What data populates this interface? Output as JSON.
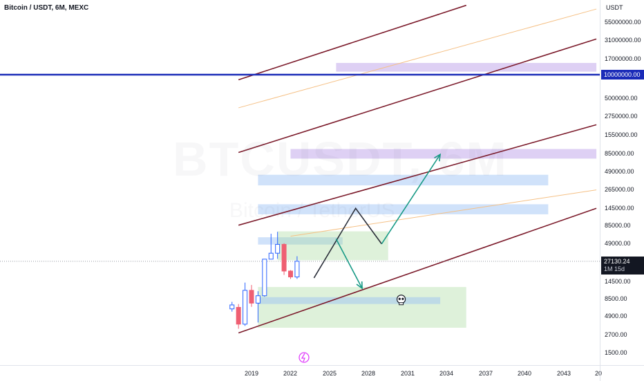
{
  "legend": {
    "symbol_title": "Bitcoin / USDT, 6M, MEXC"
  },
  "watermark": {
    "main": "BTCUSDT, 6M",
    "sub": "Bitcoin / TetherUS"
  },
  "colors": {
    "up_candle": "#2962ff",
    "down_candle": "#ef5f72",
    "channel_line": "#7b1a2a",
    "channel_mid": "#f5c085",
    "horizontal_line": "#1a2bb8",
    "arrow_path": "#189a86",
    "zigzag": "#2a2e39",
    "zone_purple": "rgba(181,150,230,0.45)",
    "zone_blue": "rgba(150,190,245,0.45)",
    "zone_green": "rgba(160,215,150,0.35)"
  },
  "price_axis": {
    "unit": "USDT",
    "labels": [
      "55000000.00",
      "31000000.00",
      "17000000.00",
      "5000000.00",
      "2750000.00",
      "1550000.00",
      "850000.00",
      "490000.00",
      "265000.00",
      "145000.00",
      "85000.00",
      "49000.00",
      "14500.00",
      "8500.00",
      "4900.00",
      "2700.00",
      "1500.00"
    ],
    "horizontal_level_badge": "10000000.00",
    "current_price_badge": "27130.24",
    "countdown": "1M 15d"
  },
  "time_axis": {
    "labels": [
      "2019",
      "2022",
      "2025",
      "2028",
      "2031",
      "2034",
      "2037",
      "2040",
      "2043",
      "20"
    ]
  },
  "chart_data": {
    "type": "candlestick",
    "title": "Bitcoin / USDT, 6M, MEXC",
    "timeframe": "6M",
    "y_scale": "log",
    "ylim": [
      1200,
      90000000
    ],
    "current_price": 27130.24,
    "horizontal_level": 10000000,
    "candles": [
      {
        "t": 2017.5,
        "open": 6000,
        "high": 7500,
        "low": 5500,
        "close": 6800
      },
      {
        "t": 2018.0,
        "open": 6300,
        "high": 7000,
        "low": 3200,
        "close": 3700
      },
      {
        "t": 2018.5,
        "open": 3700,
        "high": 13800,
        "low": 3500,
        "close": 10800
      },
      {
        "t": 2019.0,
        "open": 10800,
        "high": 12800,
        "low": 6400,
        "close": 7200
      },
      {
        "t": 2019.5,
        "open": 7200,
        "high": 10500,
        "low": 3900,
        "close": 9100
      },
      {
        "t": 2020.0,
        "open": 9100,
        "high": 29000,
        "low": 8800,
        "close": 29000
      },
      {
        "t": 2020.5,
        "open": 29000,
        "high": 64800,
        "low": 28800,
        "close": 35000
      },
      {
        "t": 2021.0,
        "open": 35000,
        "high": 69000,
        "low": 29300,
        "close": 46300
      },
      {
        "t": 2021.5,
        "open": 46300,
        "high": 48000,
        "low": 17600,
        "close": 19900
      },
      {
        "t": 2022.0,
        "open": 19900,
        "high": 20500,
        "low": 15500,
        "close": 16500
      },
      {
        "t": 2022.5,
        "open": 16500,
        "high": 31800,
        "low": 15500,
        "close": 27130
      }
    ],
    "channel_lines": [
      {
        "role": "upper-outer",
        "x1": 2018.0,
        "y1": 8500000,
        "x2": 2035.5,
        "y2": 90000000
      },
      {
        "role": "upper",
        "x1": 2018.0,
        "y1": 850000,
        "x2": 2045.5,
        "y2": 31000000
      },
      {
        "role": "middle",
        "x1": 2018.0,
        "y1": 85000,
        "x2": 2045.5,
        "y2": 2050000
      },
      {
        "role": "lower",
        "x1": 2018.0,
        "y1": 2800,
        "x2": 2045.5,
        "y2": 145000
      },
      {
        "role": "mid-band-upper",
        "x1": 2018.0,
        "y1": 3500000,
        "x2": 2045.5,
        "y2": 80000000
      },
      {
        "role": "mid-band-lower",
        "x1": 2022.0,
        "y1": 60000,
        "x2": 2045.5,
        "y2": 260000
      }
    ],
    "zones": [
      {
        "color": "zone_purple",
        "x1": 2025.5,
        "x2": 2045.5,
        "y_low": 11000000,
        "y_high": 14500000
      },
      {
        "color": "zone_purple",
        "x1": 2022.0,
        "x2": 2045.5,
        "y_low": 700000,
        "y_high": 950000
      },
      {
        "color": "zone_blue",
        "x1": 2019.5,
        "x2": 2041.8,
        "y_low": 300000,
        "y_high": 420000
      },
      {
        "color": "zone_blue",
        "x1": 2019.5,
        "x2": 2041.8,
        "y_low": 120000,
        "y_high": 165000
      },
      {
        "color": "zone_blue",
        "x1": 2019.5,
        "x2": 2026.0,
        "y_low": 46000,
        "y_high": 58000
      },
      {
        "color": "zone_green",
        "x1": 2021.0,
        "x2": 2029.5,
        "y_low": 28000,
        "y_high": 70000
      },
      {
        "color": "zone_green",
        "x1": 2019.5,
        "x2": 2035.5,
        "y_low": 3300,
        "y_high": 12000
      },
      {
        "color": "zone_blue",
        "x1": 2019.5,
        "x2": 2033.5,
        "y_low": 7000,
        "y_high": 8700
      }
    ],
    "projections": {
      "zigzag": [
        [
          2023.8,
          16000
        ],
        [
          2027.0,
          145000
        ],
        [
          2029.0,
          47000
        ]
      ],
      "bullish_arrow": [
        [
          2029.0,
          47000
        ],
        [
          2033.5,
          800000
        ]
      ],
      "bearish_arrow": [
        [
          2025.5,
          55000
        ],
        [
          2027.5,
          11500
        ]
      ],
      "skull_marker": {
        "x": 2030.5,
        "y": 7800
      }
    }
  }
}
